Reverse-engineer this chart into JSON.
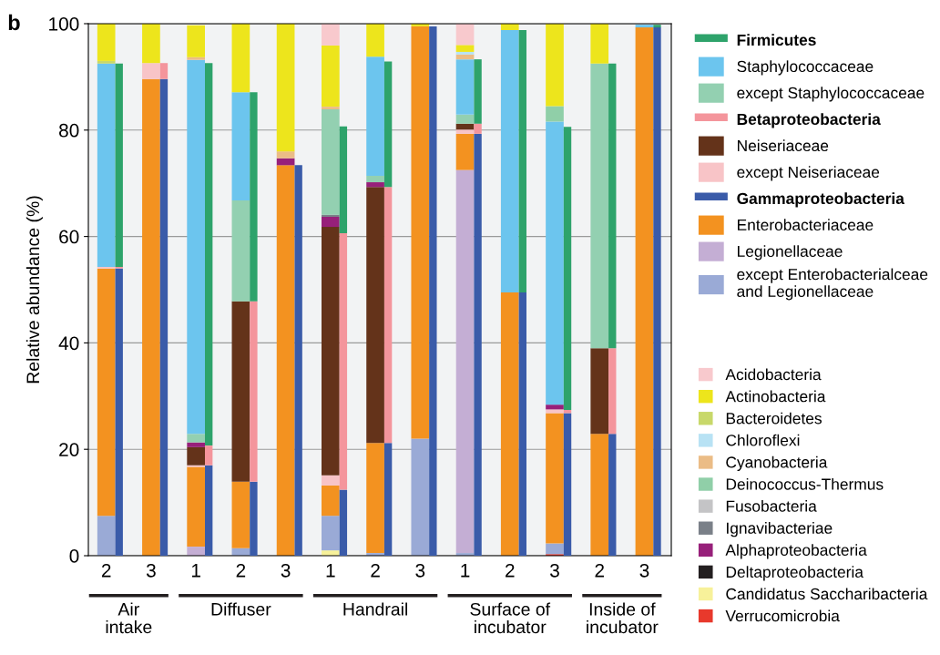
{
  "chart_data": [
    {
      "type": "bar",
      "stacked": true,
      "title": "b",
      "ylabel": "Relative abundance (%)",
      "ylim": [
        0,
        100
      ],
      "yticks": [
        0,
        20,
        40,
        60,
        80,
        100
      ],
      "grid": "y",
      "legend": "right",
      "categories": [
        "2",
        "3",
        "1",
        "2",
        "3",
        "1",
        "2",
        "3",
        "1",
        "2",
        "3",
        "2",
        "3"
      ],
      "annotations": [
        "Air\nintake",
        "Diffuser",
        "Handrail",
        "Surface of\nincubator",
        "Inside of\nincubator"
      ],
      "series": [
        {
          "name": "Verrucomicrobia",
          "color": "#e8392c",
          "values": [
            0,
            0,
            0,
            0,
            0,
            0,
            0,
            0,
            0,
            0,
            0.3,
            0,
            0
          ]
        },
        {
          "name": "Candidatus Saccharibacteria",
          "color": "#f7f19a",
          "values": [
            0,
            0,
            0,
            0,
            0,
            1,
            0,
            0,
            0,
            0,
            0,
            0,
            0
          ]
        },
        {
          "name": "except Enterobacterialceae\nand Legionellaceae",
          "color": "#9aaad6",
          "values": [
            7.5,
            0,
            null,
            1.4,
            0,
            6.5,
            0.5,
            22,
            0.5,
            0,
            2,
            0,
            0
          ]
        },
        {
          "name": "Legionellaceae",
          "color": "#c4aed4",
          "values": [
            0,
            0,
            1.7,
            0,
            0,
            0,
            0,
            0,
            72,
            0,
            0,
            0,
            0
          ]
        },
        {
          "name": "Enterobacteriaceae",
          "color": "#f39220",
          "values": [
            46.5,
            89.6,
            15,
            12.5,
            73.4,
            5.7,
            20.7,
            77.5,
            6.8,
            49.5,
            24.5,
            22.9,
            99.3
          ]
        },
        {
          "name": "except Neiseriaceae",
          "color": "#f8c4c7",
          "values": [
            0.3,
            3,
            0.3,
            0,
            0,
            1.9,
            0,
            0,
            0.8,
            0,
            0.7,
            0,
            0
          ]
        },
        {
          "name": "Neiseriaceae",
          "color": "#64331a",
          "values": [
            0,
            0,
            3.4,
            33.9,
            0,
            46.7,
            48.1,
            0,
            1.1,
            0,
            0,
            16.1,
            0
          ]
        },
        {
          "name": "Deltaproteobacteria",
          "color": "#231f20",
          "values": [
            0,
            0,
            0,
            0,
            0,
            0,
            0,
            0,
            0,
            0,
            0,
            0,
            0
          ]
        },
        {
          "name": "Alphaproteobacteria",
          "color": "#97207a",
          "values": [
            0,
            0,
            0.9,
            0,
            1.3,
            1.9,
            0.9,
            0,
            0,
            0,
            0.9,
            0,
            0
          ]
        },
        {
          "name": "Ignavibacteriae",
          "color": "#7a8088",
          "values": [
            0,
            0,
            0,
            0,
            0,
            0.4,
            0,
            0,
            0,
            0,
            0,
            0,
            0
          ]
        },
        {
          "name": "Fusobacteria",
          "color": "#c4c4c6",
          "values": [
            0,
            0,
            0,
            0,
            0,
            0,
            0,
            0,
            0,
            0,
            0,
            0,
            0
          ]
        },
        {
          "name": "except Staphylococcaceae",
          "color": "#93d0b1",
          "values": [
            0,
            0,
            1.6,
            19,
            0,
            19.8,
            1.2,
            0,
            1.7,
            0,
            0,
            53.5,
            0
          ]
        },
        {
          "name": "Staphylococcaceae",
          "color": "#6cc5ee",
          "values": [
            38.2,
            0,
            70.3,
            20.3,
            0,
            0,
            22.4,
            0,
            10.4,
            49.3,
            53.2,
            0,
            0.5
          ]
        },
        {
          "name": "Deinococcus-Thermus",
          "color": "#90cfa8",
          "values": [
            0,
            0,
            0,
            0,
            0,
            0,
            0,
            0,
            0,
            0,
            2.9,
            0,
            0
          ]
        },
        {
          "name": "Cyanobacteria",
          "color": "#ebbc86",
          "values": [
            0,
            0,
            0.5,
            0,
            1.3,
            0.5,
            0,
            0,
            0.9,
            0,
            0,
            0,
            0
          ]
        },
        {
          "name": "Chloroflexi",
          "color": "#b8e2f4",
          "values": [
            0,
            0,
            0,
            0,
            0,
            0,
            0,
            0,
            0.5,
            0,
            0,
            0,
            0
          ]
        },
        {
          "name": "Bacteroidetes",
          "color": "#c8d86a",
          "values": [
            0.5,
            0,
            0,
            0,
            0,
            0,
            0,
            0,
            0,
            0,
            0,
            0,
            0
          ]
        },
        {
          "name": "Actinobacteria",
          "color": "#ede51c",
          "values": [
            7,
            7.4,
            6,
            12.9,
            24,
            11.5,
            6.2,
            0.5,
            1.3,
            1.2,
            15.5,
            7.5,
            null
          ]
        },
        {
          "name": "Acidobacteria",
          "color": "#f8c9cd",
          "values": [
            0,
            0,
            0,
            0,
            0,
            4.1,
            0,
            0,
            4,
            0,
            0,
            0,
            0
          ]
        }
      ]
    },
    {
      "type": "bar",
      "stacked": true,
      "ylim": [
        0,
        100
      ],
      "tick_labels": false,
      "legend": "right",
      "categories": [
        null,
        null,
        null,
        null,
        null,
        null,
        null,
        null,
        null,
        null,
        null,
        null,
        null
      ],
      "series": [
        {
          "name": "Gammaproteobacteria",
          "color": "#3a5ba9",
          "values": [
            54,
            89.6,
            17,
            13.9,
            73.4,
            12.4,
            21.2,
            99.5,
            79.3,
            49.5,
            26.8,
            22.9,
            99.3
          ]
        },
        {
          "name": "Betaproteobacteria",
          "color": "#f4959c",
          "values": [
            0.3,
            3,
            3.7,
            33.9,
            0,
            48.2,
            48.1,
            0,
            1.9,
            0,
            0.6,
            16.1,
            0
          ]
        },
        {
          "name": "Firmicutes",
          "color": "#2ea36b",
          "values": [
            38.2,
            0,
            71.9,
            39.3,
            0,
            20.1,
            23.6,
            0,
            12.1,
            49.3,
            53.2,
            53.5,
            0.5
          ]
        }
      ]
    }
  ]
}
